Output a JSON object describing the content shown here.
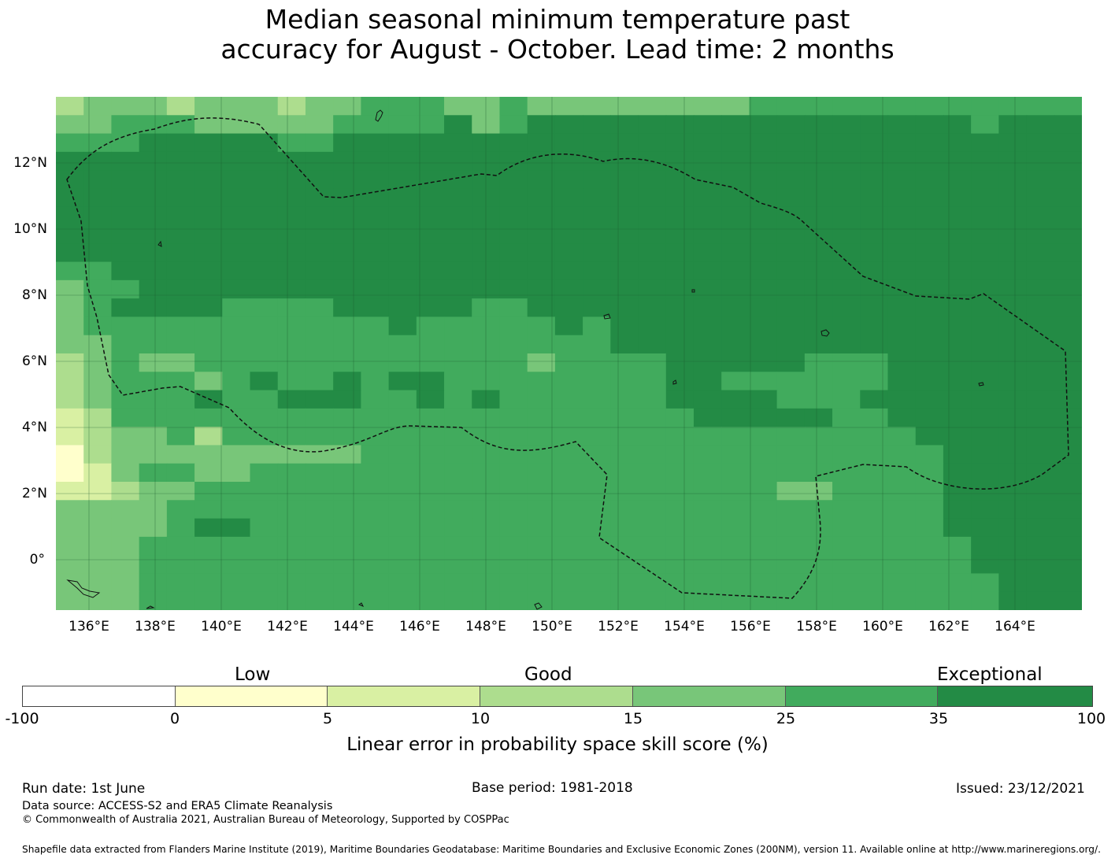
{
  "title": {
    "line1": "Median seasonal minimum temperature past",
    "line2": "accuracy for August - October. Lead time: 2 months"
  },
  "map": {
    "lat_ticks": [
      "12°N",
      "10°N",
      "8°N",
      "6°N",
      "4°N",
      "2°N",
      "0°"
    ],
    "lon_ticks": [
      "136°E",
      "138°E",
      "140°E",
      "142°E",
      "144°E",
      "146°E",
      "148°E",
      "150°E",
      "152°E",
      "154°E",
      "156°E",
      "158°E",
      "160°E",
      "162°E",
      "164°E"
    ],
    "region": "Federated States of Micronesia EEZ (dashed outline)",
    "grid_columns": 37,
    "grid_rows": 28,
    "grid_levels_description": "0=white(-100..0), 1=0..5, 2=5..10, 3=10..15, 4=15..25, 5=25..35, 6=35..100",
    "grid": [
      "3444344434455544544444444555555555555",
      "4455544444555564566666666666666665666",
      "5556666655666666666666666666666666666",
      "6666666666666666666666666666666666666",
      "6666666666666666666666666666666666666",
      "6666666666666666666666666666666666666",
      "6666666666666666666666666666666666666",
      "6666666666666666666666666666666666666",
      "6666666666666666666666666666666666666",
      "5566666666666666666666666666666666666",
      "4556666666666666666666666666666666666",
      "4566665555666665566666666666666666666",
      "4555555555556555556566666666666666666",
      "4455555555555555555566666666666666666",
      "3454455555555555545555666665556666666",
      "3455545655656655555555665555556666666",
      "3455565566655656555555666655566666666",
      "2355555555555555555555566666556666666",
      "2344535555555555555555555555555666666",
      "1344444444455555555555555555555566666",
      "1245544555555555555555555555555566666",
      "2234455555555555555555555544555566666",
      "4444555555555555555555555555555566666",
      "4444566555555555555555555555555566666",
      "4445555555555555555555555555555556666",
      "4445555555555555555555555555555556666",
      "4445555555555555555555555555555555666",
      "4445555555555555555555555555555555666"
    ],
    "colors": [
      "#ffffff",
      "#ffffcc",
      "#d9f0a3",
      "#addd8e",
      "#78c679",
      "#41ab5d",
      "#238b45"
    ]
  },
  "legend": {
    "categories": {
      "low": "Low",
      "good": "Good",
      "exceptional": "Exceptional"
    },
    "ticks": [
      "-100",
      "0",
      "5",
      "10",
      "15",
      "25",
      "35",
      "100"
    ],
    "colors": [
      "#ffffff",
      "#ffffcc",
      "#d9f0a3",
      "#addd8e",
      "#78c679",
      "#41ab5d",
      "#238b45"
    ],
    "label": "Linear error in probability space skill score (%)"
  },
  "footer": {
    "run_date": "Run date: 1st June",
    "base_period": "Base period: 1981-2018",
    "issued": "Issued: 23/12/2021",
    "data_source": "Data source: ACCESS-S2 and ERA5 Climate Reanalysis",
    "copyright": "© Commonwealth of Australia 2021, Australian Bureau of Meteorology, Supported by COSPPac",
    "shapefile": "Shapefile data extracted from Flanders Marine Institute (2019), Maritime Boundaries Geodatabase: Maritime Boundaries and Exclusive Economic Zones (200NM), version 11. Available online at http://www.marineregions.org/."
  }
}
